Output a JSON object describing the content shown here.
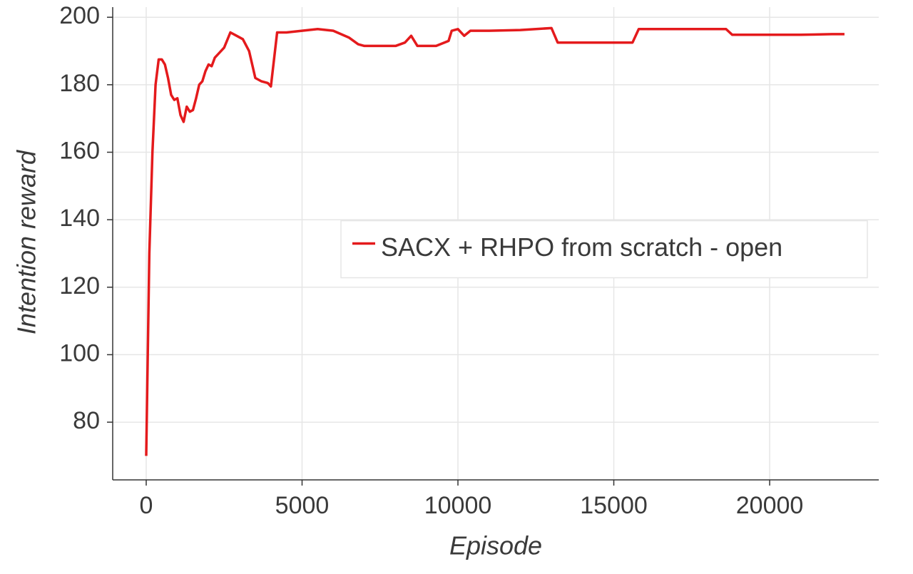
{
  "chart_data": {
    "type": "line",
    "xlabel": "Episode",
    "ylabel": "Intention reward",
    "x": [
      0,
      100,
      200,
      300,
      400,
      500,
      600,
      700,
      800,
      900,
      1000,
      1100,
      1200,
      1300,
      1400,
      1500,
      1600,
      1700,
      1800,
      1900,
      2000,
      2100,
      2200,
      2300,
      2500,
      2700,
      2900,
      3100,
      3300,
      3500,
      3700,
      3900,
      4000,
      4200,
      4500,
      5000,
      5500,
      6000,
      6500,
      6800,
      7000,
      8000,
      8300,
      8500,
      8700,
      9300,
      9700,
      9800,
      10000,
      10200,
      10400,
      11000,
      12000,
      12500,
      13000,
      13200,
      14000,
      15000,
      15600,
      15800,
      17000,
      18000,
      18600,
      18800,
      20000,
      21000,
      22000,
      22400
    ],
    "series": [
      {
        "name": "SACX + RHPO from scratch - open",
        "color": "#e41a1c",
        "values": [
          70,
          130,
          160,
          180,
          187.5,
          187.5,
          186,
          182,
          177,
          175.5,
          176,
          171,
          169,
          173.5,
          172,
          172.5,
          176,
          180,
          181,
          184,
          186,
          185.5,
          188,
          189,
          191,
          195.5,
          194.5,
          193.5,
          190,
          182,
          181,
          180.5,
          179.5,
          195.5,
          195.5,
          196,
          196.5,
          196,
          194,
          192,
          191.5,
          191.5,
          192.5,
          194.5,
          191.5,
          191.5,
          193,
          196,
          196.5,
          194.5,
          196,
          196,
          196.2,
          196.5,
          196.8,
          192.5,
          192.5,
          192.5,
          192.5,
          196.5,
          196.5,
          196.5,
          196.5,
          194.8,
          194.8,
          194.8,
          195,
          195
        ]
      }
    ],
    "xlim": [
      -1075,
      23500
    ],
    "ylim": [
      62.9,
      203
    ],
    "xticks": [
      0,
      5000,
      10000,
      15000,
      20000
    ],
    "yticks": [
      80,
      100,
      120,
      140,
      160,
      180,
      200
    ],
    "grid": true,
    "legend_loc": "center right"
  }
}
